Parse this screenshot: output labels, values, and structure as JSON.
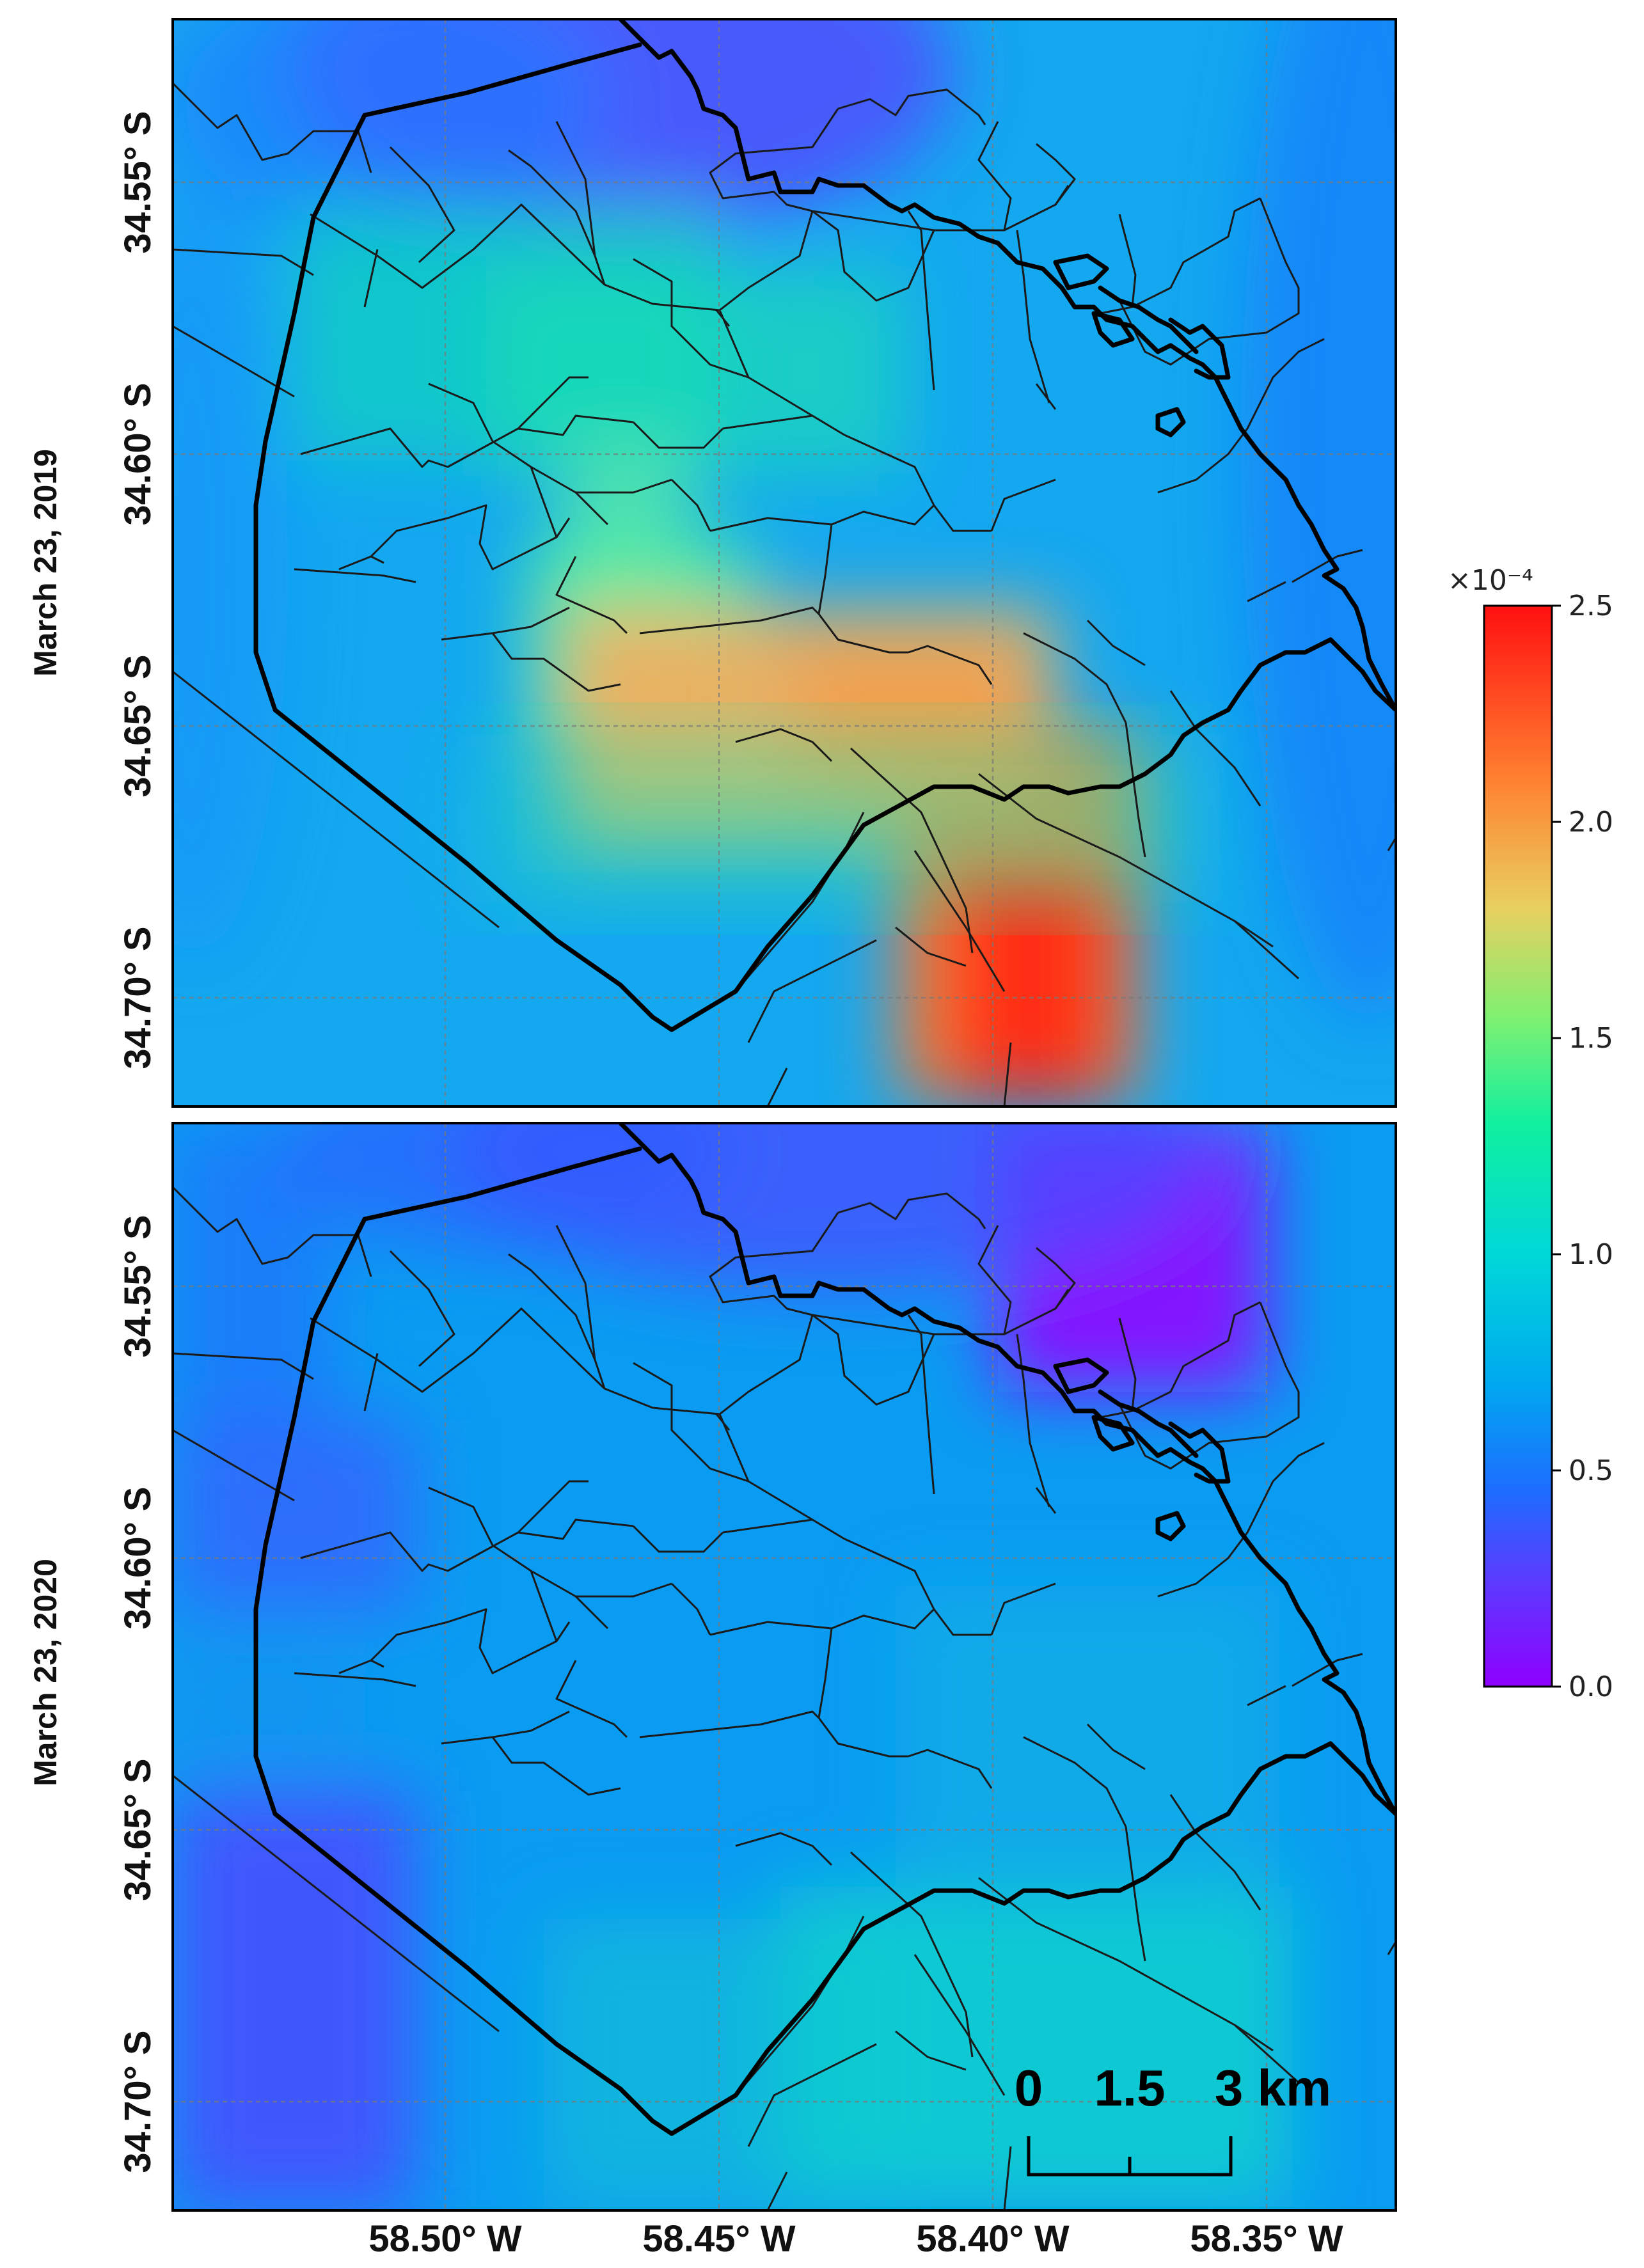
{
  "panels": [
    {
      "id": "top",
      "date_label": "March 23, 2019",
      "lat_labels": [
        "34.55° S",
        "34.60° S",
        "34.65° S",
        "34.70° S"
      ]
    },
    {
      "id": "bottom",
      "date_label": "March 23, 2020",
      "lat_labels": [
        "34.55° S",
        "34.60° S",
        "34.65° S",
        "34.70° S"
      ]
    }
  ],
  "lon_labels": [
    "58.50° W",
    "58.45° W",
    "58.40° W",
    "58.35° W"
  ],
  "colorbar": {
    "exponent_label": "×10⁻⁴",
    "ticks": [
      "2.5",
      "2.0",
      "1.5",
      "1.0",
      "0.5",
      "0.0"
    ],
    "tick_values": [
      2.5,
      2.0,
      1.5,
      1.0,
      0.5,
      0.0
    ],
    "min": 0.0,
    "max": 2.5,
    "colormap": [
      "#8f00ff",
      "#3b4cff",
      "#00a8f0",
      "#00e0c0",
      "#40f0a0",
      "#a0f070",
      "#f0c060",
      "#ff7030",
      "#ff1a1a"
    ]
  },
  "scale_bar": {
    "labels": [
      "0",
      "1.5",
      "3 km"
    ]
  }
}
